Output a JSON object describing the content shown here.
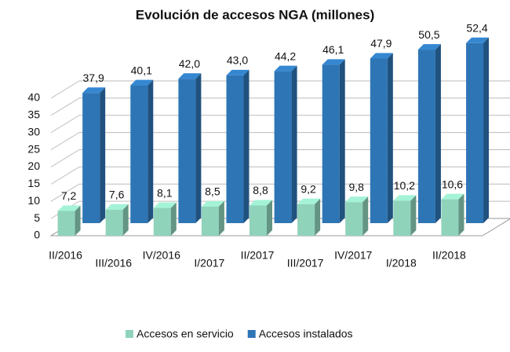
{
  "chart_data": {
    "type": "bar3d",
    "title": "Evolución de accesos NGA (millones)",
    "categories": [
      "II/2016",
      "III/2016",
      "IV/2016",
      "I/2017",
      "II/2017",
      "III/2017",
      "IV/2017",
      "I/2018",
      "II/2018"
    ],
    "series": [
      {
        "name": "Accesos en servicio",
        "color": "#8fd3bb",
        "values": [
          7.2,
          7.6,
          8.1,
          8.5,
          8.8,
          9.2,
          9.8,
          10.2,
          10.6
        ],
        "value_labels": [
          "7,2",
          "7,6",
          "8,1",
          "8,5",
          "8,8",
          "9,2",
          "9,8",
          "10,2",
          "10,6"
        ]
      },
      {
        "name": "Accesos instalados",
        "color": "#2e75b6",
        "values": [
          37.9,
          40.1,
          42.0,
          43.0,
          44.2,
          46.1,
          47.9,
          50.5,
          52.4
        ],
        "value_labels": [
          "37,9",
          "40,1",
          "42,0",
          "43,0",
          "44,2",
          "46,1",
          "47,9",
          "50,5",
          "52,4"
        ]
      }
    ],
    "ylim": [
      0,
      40
    ],
    "yticks": [
      0,
      5,
      10,
      15,
      20,
      25,
      30,
      35,
      40
    ],
    "grid": true,
    "legend": "bottom"
  }
}
